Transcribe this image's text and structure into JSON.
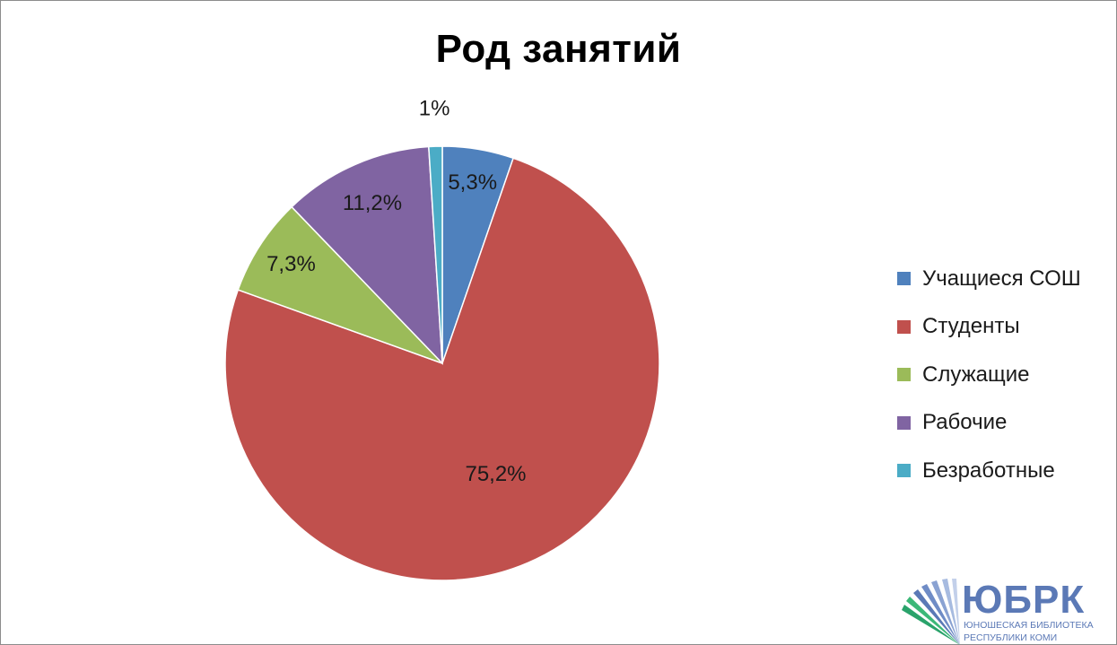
{
  "chart_data": {
    "type": "pie",
    "title": "Род занятий",
    "slices": [
      {
        "label": "Учащиеся СОШ",
        "value": 5.3,
        "display": "5,3%",
        "color": "#4f81bd"
      },
      {
        "label": "Студенты",
        "value": 75.2,
        "display": "75,2%",
        "color": "#c0504d"
      },
      {
        "label": "Служащие",
        "value": 7.3,
        "display": "7,3%",
        "color": "#9bbb59"
      },
      {
        "label": "Рабочие",
        "value": 11.2,
        "display": "11,2%",
        "color": "#8064a2"
      },
      {
        "label": "Безработные",
        "value": 1,
        "display": "1%",
        "color": "#4bacc6"
      }
    ],
    "legend_position": "right"
  },
  "logo": {
    "title": "ЮБРК",
    "subtitle_line1": "ЮНОШЕСКАЯ БИБЛИОТЕКА",
    "subtitle_line2": "РЕСПУБЛИКИ КОМИ"
  }
}
